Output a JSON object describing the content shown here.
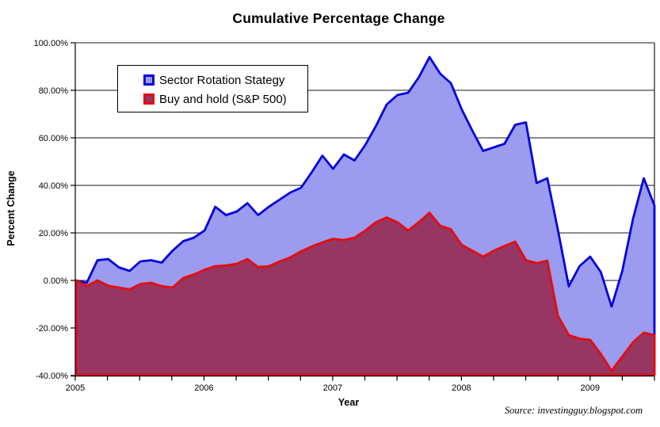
{
  "title": "Cumulative Percentage Change",
  "source": "Source: investingguy.blogspot.com",
  "axes": {
    "y_label": "Percent Change",
    "x_label": "Year"
  },
  "chart_data": {
    "type": "area",
    "title": "Cumulative Percentage Change",
    "xlabel": "Year",
    "ylabel": "Percent Change",
    "x_start": "2005-01",
    "x_end": "2009-07",
    "x_interval": "monthly",
    "ylim": [
      -40,
      100
    ],
    "grid": "horizontal-black-lines",
    "legend_position": "inside-top-left",
    "xticks": [
      "2005",
      "2006",
      "2007",
      "2008",
      "2009"
    ],
    "x_minor_ticks": "quarterly",
    "yticks": [
      {
        "value": 100,
        "label": "100.00%"
      },
      {
        "value": 80,
        "label": "80.00%"
      },
      {
        "value": 60,
        "label": "60.00%"
      },
      {
        "value": 40,
        "label": "40.00%"
      },
      {
        "value": 20,
        "label": "20.00%"
      },
      {
        "value": 0,
        "label": "0.00%"
      },
      {
        "value": -20,
        "label": "-20.00%"
      },
      {
        "value": -40,
        "label": "-40.00%"
      }
    ],
    "colors": {
      "grid": "#1a1a1a",
      "axis": "#000000",
      "background": "#ffffff"
    },
    "series": [
      {
        "name": "Sector Rotation Stategy",
        "line": "#0202dd",
        "fill": "#9b9bef",
        "values": [
          0,
          -1,
          8.5,
          9,
          5.5,
          4,
          8,
          8.5,
          7.5,
          12.5,
          16.5,
          18,
          21,
          31,
          27.5,
          29,
          32.5,
          27.5,
          31,
          34,
          37,
          39,
          45.5,
          52.5,
          47,
          53,
          50.5,
          57,
          65,
          74,
          78,
          79,
          85.5,
          94,
          87,
          83,
          72,
          63,
          54.5,
          56,
          57.5,
          65.5,
          66.5,
          41,
          43,
          21,
          -2.5,
          6,
          10,
          3.5,
          -11,
          4,
          26,
          43,
          31.5
        ]
      },
      {
        "name": "Buy and hold (S&P 500)",
        "line": "#e60c0c",
        "fill": "#973563",
        "values": [
          0,
          -2.3,
          0,
          -2.2,
          -3,
          -3.8,
          -1.5,
          -1,
          -2.4,
          -3,
          1,
          2.5,
          4.5,
          6,
          6.3,
          7,
          9,
          5.6,
          6,
          8,
          9.7,
          12.2,
          14.3,
          16,
          17.5,
          17,
          18,
          21,
          24.5,
          26.5,
          24.5,
          21,
          24.5,
          28.5,
          23,
          21.5,
          15,
          12.5,
          10,
          12.5,
          14.5,
          16.3,
          8.5,
          7.3,
          8.3,
          -15,
          -23,
          -24.5,
          -25,
          -31,
          -38,
          -32,
          -26,
          -22,
          -23
        ]
      }
    ]
  }
}
